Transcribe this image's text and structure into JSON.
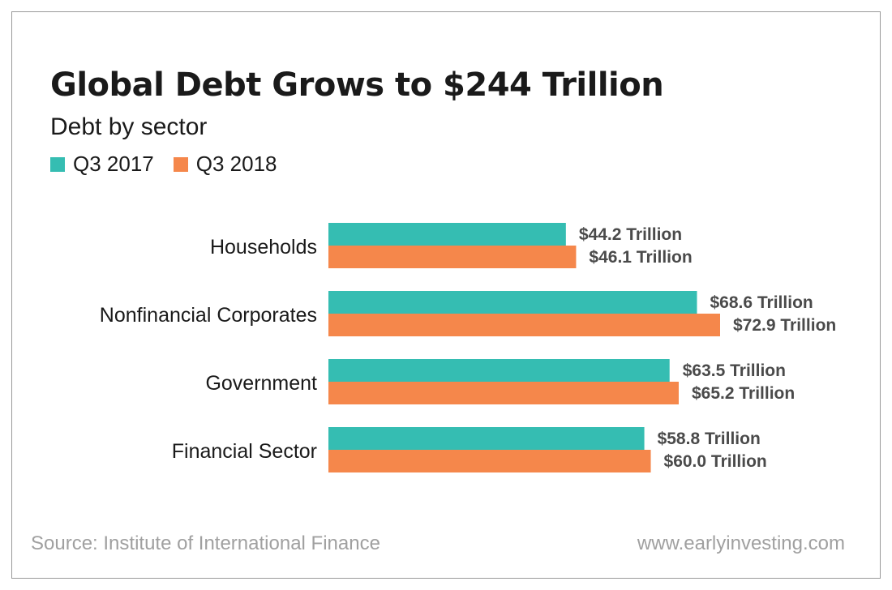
{
  "header": {
    "title": "Global Debt Grows to $244 Trillion",
    "subtitle": "Debt by sector"
  },
  "legend": [
    {
      "label": "Q3 2017",
      "color": "#35bdb2"
    },
    {
      "label": "Q3 2018",
      "color": "#f5874b"
    }
  ],
  "footer": {
    "source": "Source: Institute of International Finance",
    "website": "www.earlyinvesting.com"
  },
  "chart_data": {
    "type": "bar",
    "orientation": "horizontal",
    "title": "Global Debt Grows to $244 Trillion",
    "subtitle": "Debt by sector",
    "categories": [
      "Households",
      "Nonfinancial Corporates",
      "Government",
      "Financial Sector"
    ],
    "series": [
      {
        "name": "Q3 2017",
        "color": "#35bdb2",
        "values": [
          44.2,
          68.6,
          63.5,
          58.8
        ],
        "labels": [
          "$44.2 Trillion",
          "$68.6 Trillion",
          "$63.5 Trillion",
          "$58.8 Trillion"
        ]
      },
      {
        "name": "Q3 2018",
        "color": "#f5874b",
        "values": [
          46.1,
          72.9,
          65.2,
          60.0
        ],
        "labels": [
          "$46.1 Trillion",
          "$72.9 Trillion",
          "$65.2 Trillion",
          "$60.0 Trillion"
        ]
      }
    ],
    "xlim": [
      0,
      72.9
    ],
    "grid": false,
    "legend_position": "top-left",
    "data_labels": true
  }
}
